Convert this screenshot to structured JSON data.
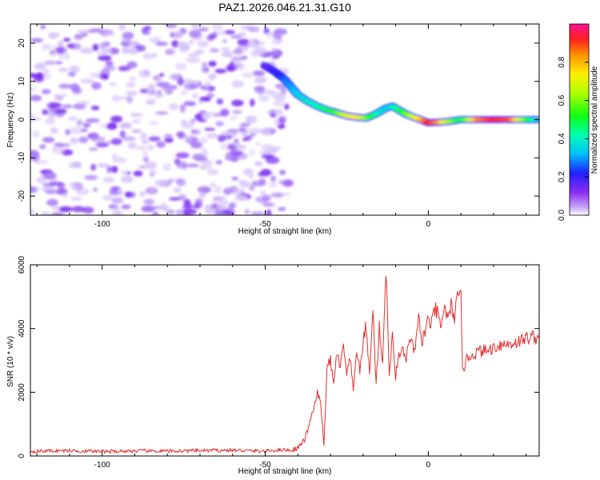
{
  "figure": {
    "title": "PAZ1.2026.046.21.31.G10"
  },
  "colors": {
    "snr_line": "#e53030",
    "ridge_low": "#3030ff",
    "ridge_high": "#ff1a1a",
    "noise": "#7a2cf0"
  },
  "chart_data": [
    {
      "type": "heatmap",
      "name": "spectrogram",
      "xlabel": "Height of straight line (km)",
      "ylabel": "Frequency (Hz)",
      "xlim": [
        -122,
        34
      ],
      "ylim": [
        -25,
        25
      ],
      "x_ticks": [
        -100,
        -50,
        0
      ],
      "x_tick_labels": [
        "-100",
        "-50",
        "0"
      ],
      "y_ticks": [
        -20,
        -10,
        0,
        10,
        20
      ],
      "y_tick_labels": [
        "-20",
        "-10",
        "0",
        "10",
        "20"
      ],
      "noise_region_x": [
        -122,
        -43
      ],
      "ridge": {
        "x": [
          -50,
          -47,
          -44,
          -42,
          -40,
          -37,
          -34,
          -31,
          -28,
          -25,
          -22,
          -19,
          -16,
          -13,
          -11,
          -9,
          -7,
          -5,
          -3,
          0,
          3,
          6,
          10,
          15,
          20,
          25,
          30,
          34
        ],
        "frequency": [
          14,
          12.5,
          10.5,
          8.5,
          6.5,
          4.8,
          3.5,
          2.5,
          1.8,
          1.0,
          0.6,
          0.4,
          1.5,
          3.0,
          3.5,
          2.5,
          1.5,
          0.8,
          0.2,
          -0.8,
          -0.7,
          -0.5,
          0,
          0,
          0,
          0,
          0,
          0
        ],
        "amplitude": [
          0.05,
          0.15,
          0.25,
          0.3,
          0.35,
          0.4,
          0.45,
          0.5,
          0.6,
          0.75,
          0.8,
          0.65,
          0.45,
          0.35,
          0.4,
          0.5,
          0.6,
          0.7,
          0.8,
          1.0,
          0.9,
          0.7,
          0.5,
          0.9,
          1.0,
          0.95,
          0.6,
          0.3
        ]
      },
      "colorbar": {
        "label": "Normalized spectral amplitude",
        "range": [
          0,
          1
        ],
        "ticks": [
          0.0,
          0.2,
          0.4,
          0.6,
          0.8
        ],
        "tick_labels": [
          "0.0",
          "0.2",
          "0.4",
          "0.6",
          "0.8"
        ]
      }
    },
    {
      "type": "line",
      "name": "snr",
      "xlabel": "Height of straight line (km)",
      "ylabel": "SNR (10 * v/v)",
      "xlim": [
        -122,
        34
      ],
      "ylim": [
        0,
        6000
      ],
      "x_ticks": [
        -100,
        -50,
        0
      ],
      "x_tick_labels": [
        "-100",
        "-50",
        "0"
      ],
      "y_ticks": [
        0,
        2000,
        4000,
        6000
      ],
      "y_tick_labels": [
        "0",
        "2000",
        "4000",
        "6000"
      ],
      "series": [
        {
          "name": "SNR",
          "x": [
            -122,
            -110,
            -100,
            -90,
            -80,
            -70,
            -60,
            -50,
            -45,
            -42,
            -40,
            -38,
            -37,
            -36,
            -35,
            -34,
            -33,
            -32,
            -31,
            -30,
            -29,
            -28,
            -27,
            -26,
            -25,
            -24,
            -23,
            -22,
            -21,
            -20,
            -19,
            -18,
            -17,
            -16,
            -15,
            -14,
            -13,
            -12,
            -11,
            -10,
            -9,
            -8,
            -7,
            -6,
            -5,
            -4,
            -3,
            -2,
            -1,
            0,
            1,
            2,
            3,
            4,
            5,
            6,
            7,
            8,
            9,
            10,
            10.5,
            11,
            12,
            14,
            16,
            18,
            20,
            22,
            24,
            26,
            28,
            30,
            32,
            34
          ],
          "y": [
            150,
            170,
            140,
            160,
            150,
            170,
            180,
            150,
            200,
            180,
            250,
            500,
            800,
            1200,
            1500,
            2000,
            1600,
            400,
            2800,
            3000,
            2200,
            3300,
            2700,
            3500,
            2500,
            3100,
            2000,
            3400,
            2600,
            3600,
            4100,
            2500,
            4600,
            2300,
            4000,
            2900,
            5950,
            2600,
            3700,
            2500,
            3200,
            3400,
            2900,
            3600,
            3500,
            3300,
            4300,
            3600,
            3900,
            4300,
            4100,
            4600,
            4400,
            4000,
            4800,
            4200,
            4700,
            4400,
            4900,
            4950,
            2900,
            2800,
            3100,
            3200,
            3300,
            3300,
            3400,
            3500,
            3500,
            3550,
            3600,
            3700,
            3750,
            3700
          ]
        }
      ]
    }
  ]
}
